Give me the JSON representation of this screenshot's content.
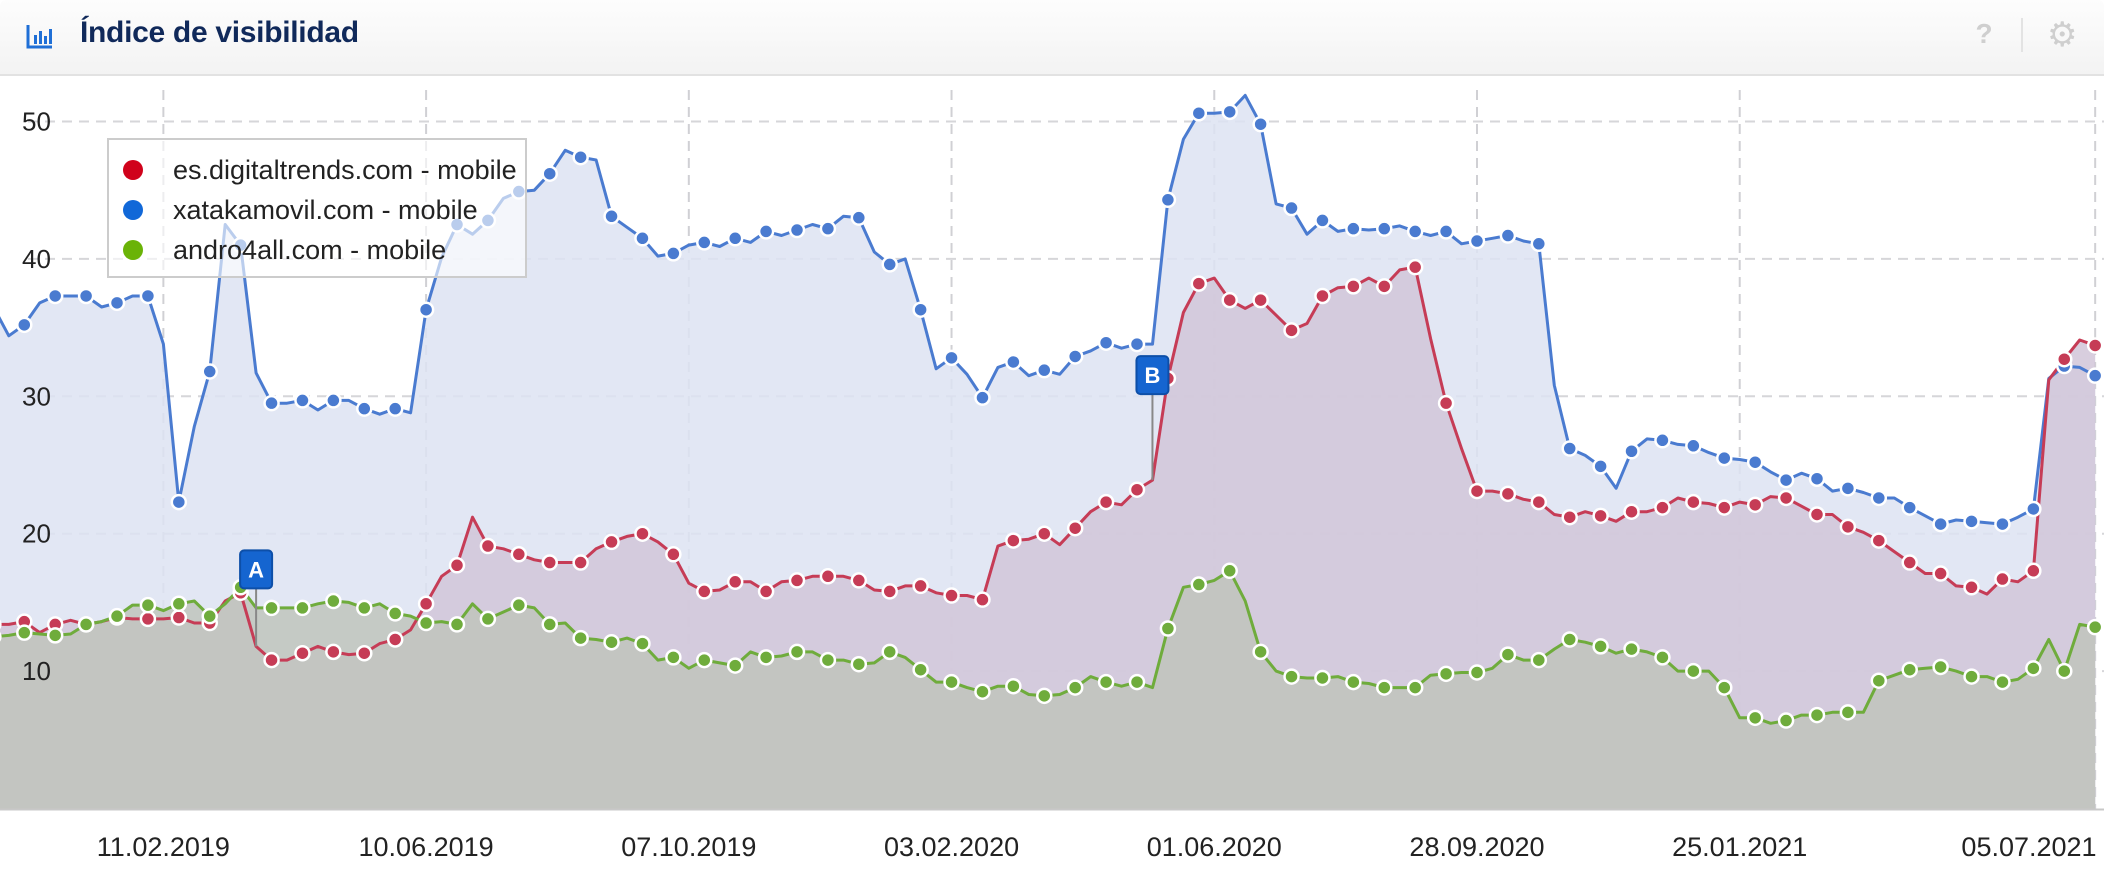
{
  "header": {
    "title": "Índice de visibilidad",
    "icons": {
      "chart": "bar-chart-icon",
      "help": "help-icon",
      "settings": "gear-icon"
    },
    "help_glyph": "?"
  },
  "chart_data": {
    "type": "area",
    "title": "",
    "xlabel": "",
    "ylabel": "",
    "xlim": [
      "2018-11-29",
      "2021-07-09"
    ],
    "ylim": [
      0,
      52
    ],
    "yticks": [
      10,
      20,
      30,
      40,
      50
    ],
    "xticks": [
      {
        "date": "2019-02-11",
        "label": "11.02.2019"
      },
      {
        "date": "2019-06-10",
        "label": "10.06.2019"
      },
      {
        "date": "2019-10-07",
        "label": "07.10.2019"
      },
      {
        "date": "2020-02-03",
        "label": "03.02.2020"
      },
      {
        "date": "2020-06-01",
        "label": "01.06.2020"
      },
      {
        "date": "2020-09-28",
        "label": "28.09.2020"
      },
      {
        "date": "2021-01-25",
        "label": "25.01.2021"
      },
      {
        "date": "2021-07-05",
        "label": "05.07.2021"
      }
    ],
    "grid": true,
    "legend_position": "top-left",
    "x": [
      "2018-11-26",
      "2018-12-03",
      "2018-12-10",
      "2018-12-17",
      "2018-12-24",
      "2018-12-31",
      "2019-01-07",
      "2019-01-14",
      "2019-01-21",
      "2019-01-28",
      "2019-02-04",
      "2019-02-11",
      "2019-02-18",
      "2019-02-25",
      "2019-03-04",
      "2019-03-11",
      "2019-03-18",
      "2019-03-25",
      "2019-04-01",
      "2019-04-08",
      "2019-04-15",
      "2019-04-22",
      "2019-04-29",
      "2019-05-06",
      "2019-05-13",
      "2019-05-20",
      "2019-05-27",
      "2019-06-03",
      "2019-06-10",
      "2019-06-17",
      "2019-06-24",
      "2019-07-01",
      "2019-07-08",
      "2019-07-15",
      "2019-07-22",
      "2019-07-29",
      "2019-08-05",
      "2019-08-12",
      "2019-08-19",
      "2019-08-26",
      "2019-09-02",
      "2019-09-09",
      "2019-09-16",
      "2019-09-23",
      "2019-09-30",
      "2019-10-07",
      "2019-10-14",
      "2019-10-21",
      "2019-10-28",
      "2019-11-04",
      "2019-11-11",
      "2019-11-18",
      "2019-11-25",
      "2019-12-02",
      "2019-12-09",
      "2019-12-16",
      "2019-12-23",
      "2019-12-30",
      "2020-01-06",
      "2020-01-13",
      "2020-01-20",
      "2020-01-27",
      "2020-02-03",
      "2020-02-10",
      "2020-02-17",
      "2020-02-24",
      "2020-03-02",
      "2020-03-09",
      "2020-03-16",
      "2020-03-23",
      "2020-03-30",
      "2020-04-06",
      "2020-04-13",
      "2020-04-20",
      "2020-04-27",
      "2020-05-04",
      "2020-05-11",
      "2020-05-18",
      "2020-05-25",
      "2020-06-01",
      "2020-06-08",
      "2020-06-15",
      "2020-06-22",
      "2020-06-29",
      "2020-07-06",
      "2020-07-13",
      "2020-07-20",
      "2020-07-27",
      "2020-08-03",
      "2020-08-10",
      "2020-08-17",
      "2020-08-24",
      "2020-08-31",
      "2020-09-07",
      "2020-09-14",
      "2020-09-21",
      "2020-09-28",
      "2020-10-05",
      "2020-10-12",
      "2020-10-19",
      "2020-10-26",
      "2020-11-02",
      "2020-11-09",
      "2020-11-16",
      "2020-11-23",
      "2020-11-30",
      "2020-12-07",
      "2020-12-14",
      "2020-12-21",
      "2020-12-28",
      "2021-01-04",
      "2021-01-11",
      "2021-01-18",
      "2021-01-25",
      "2021-02-01",
      "2021-02-08",
      "2021-02-15",
      "2021-02-22",
      "2021-03-01",
      "2021-03-08",
      "2021-03-15",
      "2021-03-22",
      "2021-03-29",
      "2021-04-05",
      "2021-04-12",
      "2021-04-19",
      "2021-04-26",
      "2021-05-03",
      "2021-05-10",
      "2021-05-17",
      "2021-05-24",
      "2021-05-31",
      "2021-06-07",
      "2021-06-14",
      "2021-06-21",
      "2021-06-28",
      "2021-07-05"
    ],
    "series": [
      {
        "name": "xatakamovil.com - mobile",
        "color": "#4a7bd0",
        "fill": "#dde3f2",
        "values": [
          36.5,
          34.4,
          35.2,
          36.8,
          37.3,
          37.3,
          37.3,
          36.5,
          36.8,
          37.3,
          37.3,
          33.8,
          22.3,
          27.8,
          31.8,
          42.5,
          41.0,
          31.7,
          29.5,
          29.5,
          29.7,
          29.0,
          29.7,
          29.7,
          29.1,
          28.7,
          29.1,
          28.8,
          36.3,
          40.1,
          42.5,
          41.8,
          42.8,
          44.4,
          44.9,
          45.0,
          46.2,
          47.9,
          47.4,
          47.2,
          43.1,
          42.3,
          41.5,
          40.2,
          40.4,
          41.0,
          41.2,
          40.9,
          41.5,
          41.2,
          42.0,
          41.7,
          42.1,
          42.5,
          42.2,
          43.1,
          43.0,
          40.5,
          39.6,
          40.0,
          36.3,
          32.0,
          32.8,
          31.6,
          29.9,
          32.1,
          32.5,
          31.5,
          31.9,
          31.6,
          32.9,
          33.3,
          33.9,
          33.5,
          33.8,
          33.8,
          44.3,
          48.7,
          50.6,
          50.6,
          50.7,
          51.9,
          49.8,
          44.0,
          43.7,
          41.8,
          42.8,
          42.0,
          42.2,
          42.1,
          42.2,
          42.4,
          42.0,
          41.7,
          42.0,
          41.1,
          41.3,
          41.5,
          41.7,
          41.3,
          41.1,
          30.8,
          26.2,
          25.7,
          24.9,
          23.3,
          26.0,
          26.9,
          26.8,
          26.5,
          26.4,
          25.9,
          25.5,
          25.4,
          25.2,
          24.5,
          23.9,
          24.4,
          24.0,
          23.1,
          23.3,
          23.0,
          22.6,
          22.6,
          21.9,
          21.3,
          20.7,
          21.0,
          20.9,
          20.8,
          20.7,
          21.2,
          21.8,
          31.3,
          32.2,
          32.1,
          31.5
        ]
      },
      {
        "name": "es.digitaltrends.com - mobile",
        "color": "#c63c56",
        "fill": "#d1c6d8",
        "values": [
          13.4,
          13.4,
          13.6,
          12.8,
          13.4,
          13.7,
          13.4,
          13.6,
          13.9,
          13.8,
          13.8,
          13.8,
          13.9,
          13.5,
          13.5,
          15.1,
          15.7,
          11.8,
          10.8,
          10.8,
          11.3,
          11.8,
          11.4,
          11.2,
          11.3,
          12.0,
          12.3,
          13.0,
          14.9,
          16.9,
          17.7,
          21.2,
          19.1,
          18.9,
          18.5,
          18.1,
          17.9,
          17.9,
          17.9,
          18.9,
          19.4,
          19.8,
          20.0,
          19.4,
          18.5,
          16.4,
          15.8,
          15.9,
          16.5,
          16.5,
          15.8,
          16.5,
          16.6,
          16.9,
          16.9,
          16.9,
          16.6,
          15.9,
          15.8,
          16.2,
          16.2,
          15.7,
          15.5,
          15.5,
          15.2,
          19.1,
          19.5,
          19.6,
          20.0,
          19.2,
          20.4,
          21.6,
          22.3,
          22.1,
          23.2,
          23.9,
          31.3,
          36.1,
          38.2,
          38.6,
          37.0,
          36.4,
          37.0,
          35.9,
          34.8,
          35.3,
          37.3,
          37.9,
          38.0,
          38.6,
          38.0,
          39.2,
          39.4,
          34.2,
          29.5,
          26.2,
          23.1,
          23.1,
          22.9,
          22.5,
          22.3,
          21.4,
          21.2,
          21.6,
          21.3,
          20.9,
          21.6,
          21.6,
          21.9,
          22.6,
          22.3,
          22.2,
          21.9,
          22.3,
          22.1,
          22.7,
          22.6,
          22.0,
          21.4,
          21.4,
          20.5,
          20.1,
          19.5,
          18.7,
          17.9,
          17.1,
          17.1,
          16.2,
          16.1,
          15.6,
          16.7,
          16.5,
          17.3,
          31.2,
          32.7,
          34.1,
          33.7
        ]
      },
      {
        "name": "andro4all.com - mobile",
        "color": "#6fac3c",
        "fill": "#bfc4bc",
        "values": [
          12.5,
          12.6,
          12.8,
          12.7,
          12.6,
          12.7,
          13.4,
          13.6,
          14.0,
          14.8,
          14.8,
          14.4,
          14.9,
          15.1,
          14.0,
          14.9,
          16.1,
          14.6,
          14.6,
          14.6,
          14.6,
          14.9,
          15.1,
          15.0,
          14.6,
          14.9,
          14.2,
          14.0,
          13.5,
          13.6,
          13.4,
          14.9,
          13.8,
          14.3,
          14.8,
          14.6,
          13.4,
          13.5,
          12.4,
          12.3,
          12.1,
          12.4,
          12.0,
          10.8,
          11.0,
          10.2,
          10.8,
          10.6,
          10.4,
          11.4,
          11.0,
          11.1,
          11.4,
          11.4,
          10.8,
          10.8,
          10.5,
          10.6,
          11.4,
          11.0,
          10.1,
          9.2,
          9.2,
          8.8,
          8.5,
          8.9,
          8.9,
          8.3,
          8.2,
          8.3,
          8.8,
          9.6,
          9.2,
          8.9,
          9.2,
          8.8,
          13.1,
          16.1,
          16.3,
          16.6,
          17.3,
          15.1,
          11.4,
          10.0,
          9.6,
          9.5,
          9.5,
          9.6,
          9.2,
          9.1,
          8.8,
          8.8,
          8.8,
          9.7,
          9.8,
          9.9,
          9.9,
          10.2,
          11.2,
          10.8,
          10.8,
          11.6,
          12.3,
          12.1,
          11.8,
          11.3,
          11.6,
          11.4,
          11.0,
          10.0,
          10.0,
          10.0,
          8.8,
          6.6,
          6.6,
          6.2,
          6.4,
          6.8,
          6.8,
          7.0,
          7.0,
          7.0,
          9.3,
          9.7,
          10.1,
          10.2,
          10.3,
          10.0,
          9.6,
          9.6,
          9.2,
          9.4,
          10.2,
          12.3,
          10.0,
          13.4,
          13.2
        ]
      }
    ],
    "legend": [
      {
        "label": "es.digitaltrends.com - mobile",
        "color": "#d0021b"
      },
      {
        "label": "xatakamovil.com - mobile",
        "color": "#1168d8"
      },
      {
        "label": "andro4all.com - mobile",
        "color": "#6ab307"
      }
    ],
    "annotations": [
      {
        "label": "A",
        "date": "2019-03-25"
      },
      {
        "label": "B",
        "date": "2020-05-04"
      }
    ]
  }
}
